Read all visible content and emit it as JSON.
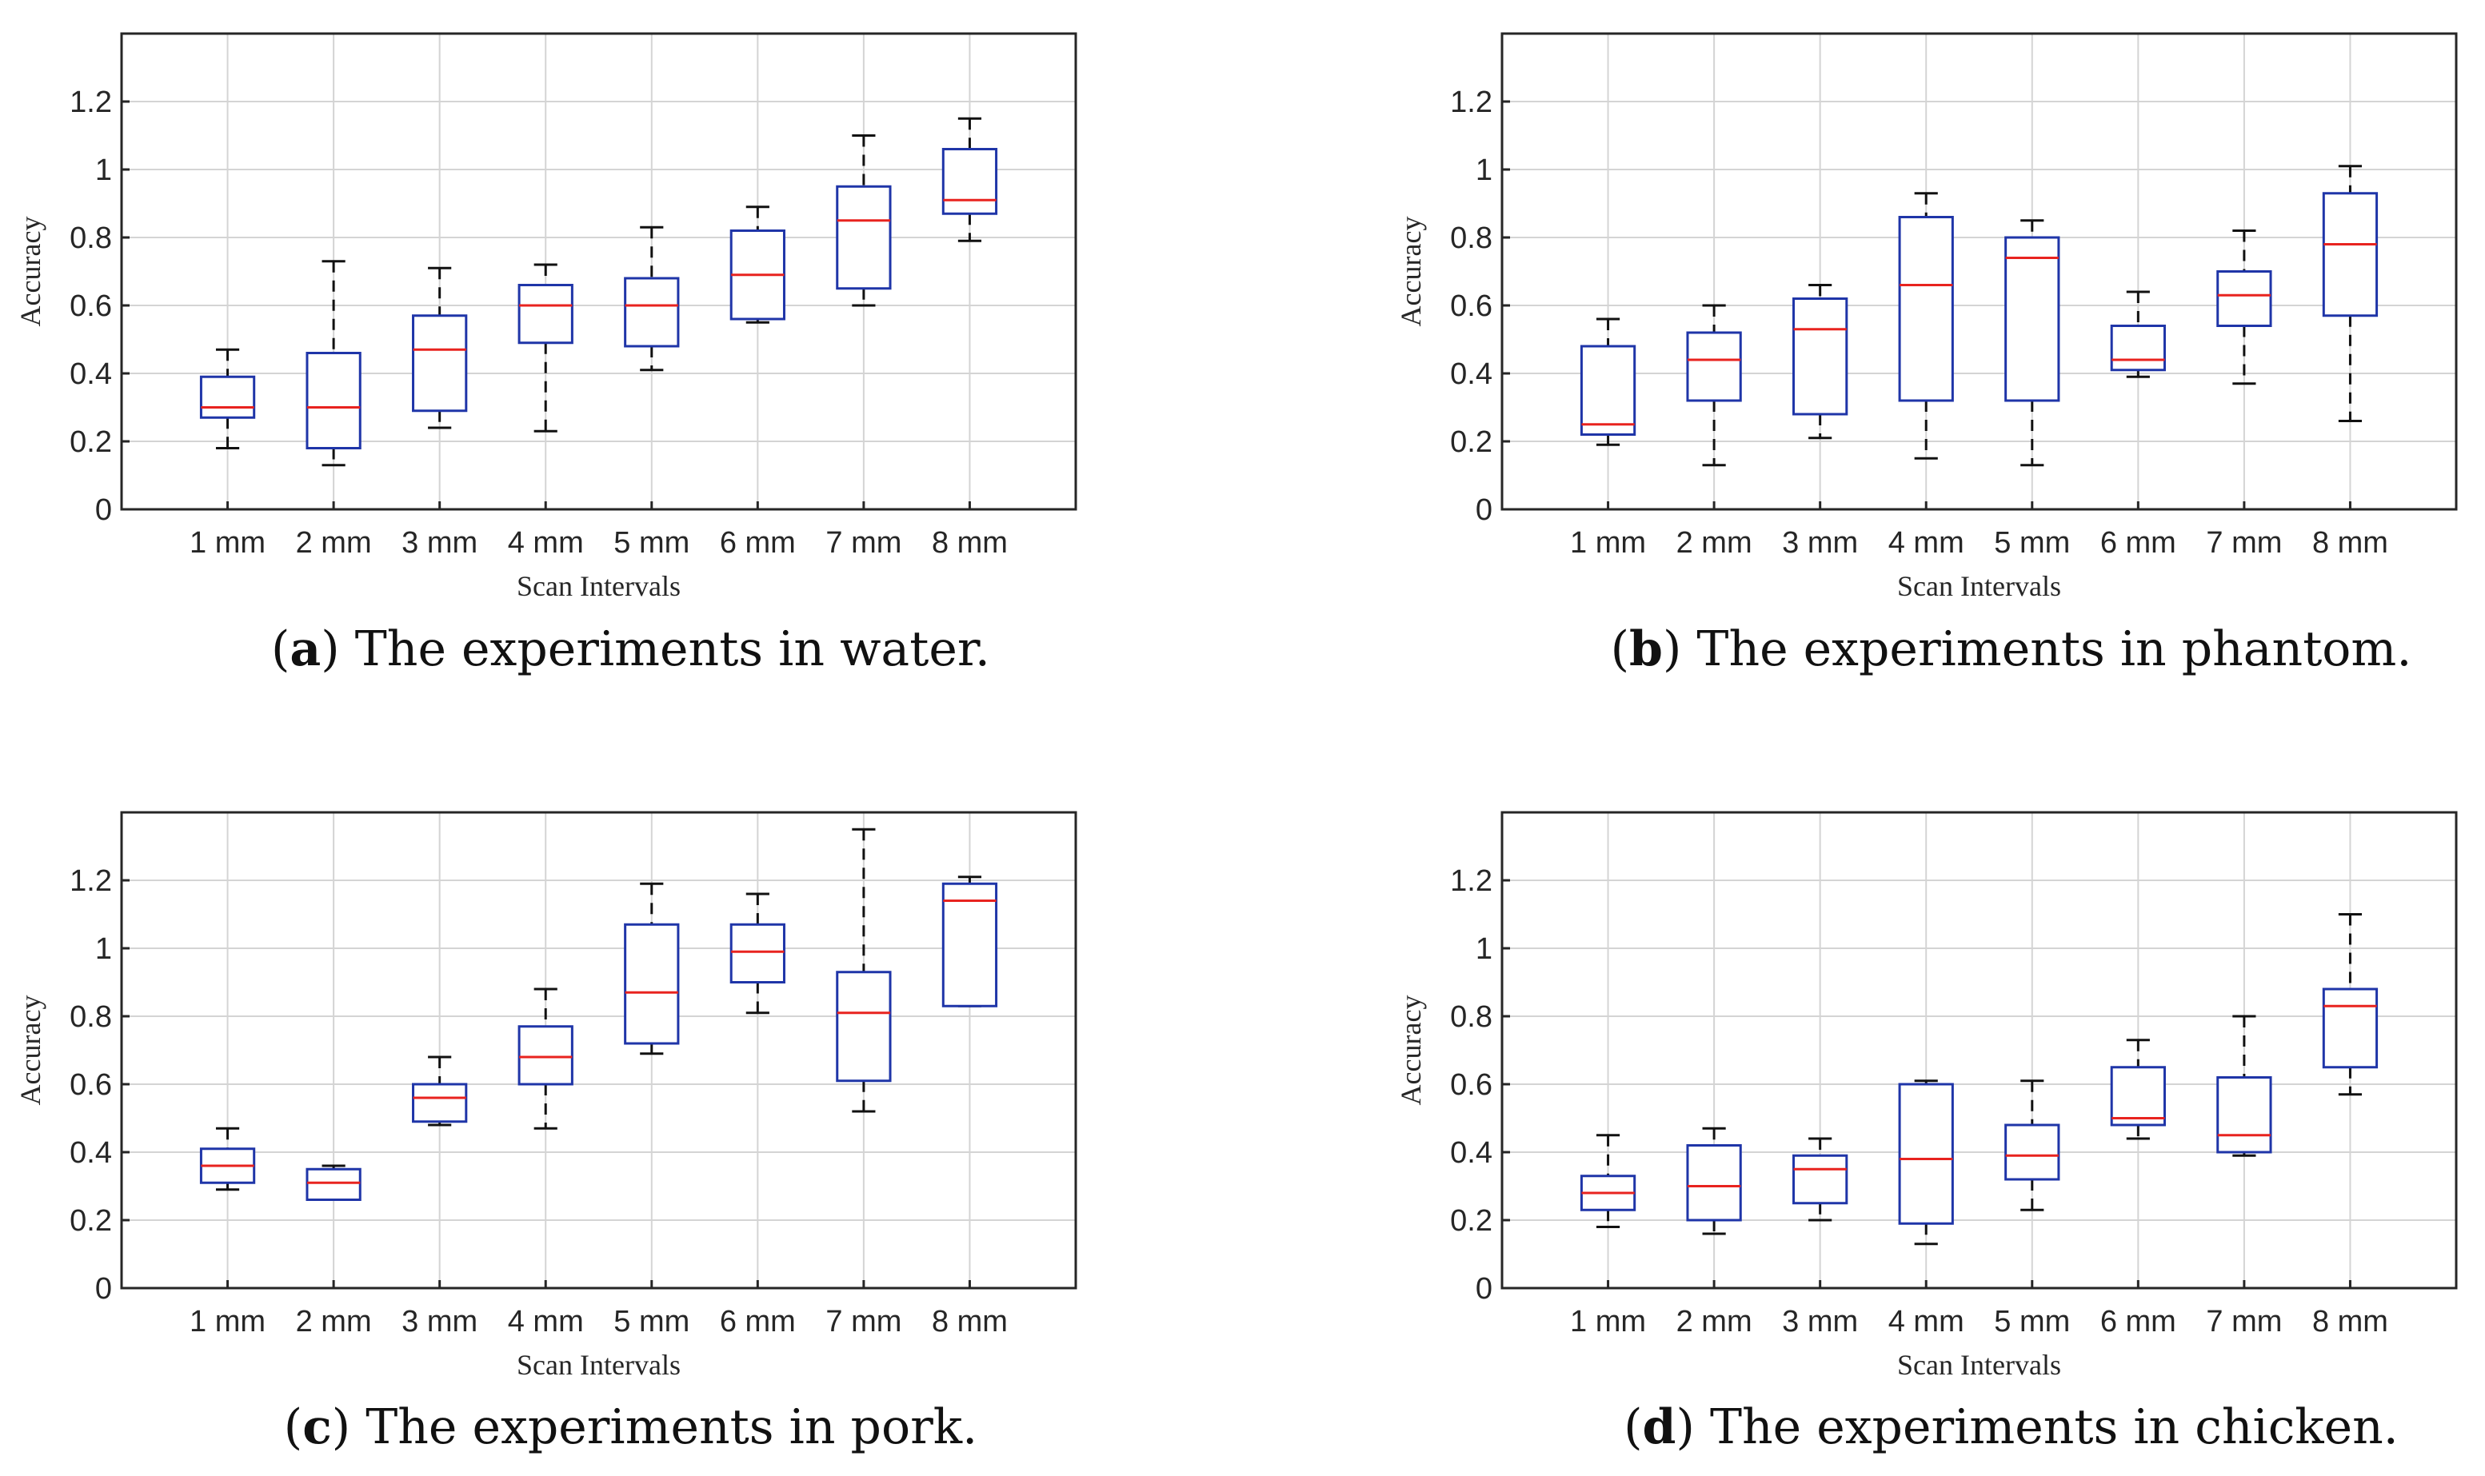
{
  "figure": {
    "colors": {
      "box": "#1f35a8",
      "median": "#e8231f",
      "whisker": "#111111",
      "grid": "#d4d4d4",
      "axis": "#262626"
    }
  },
  "chart_data": [
    {
      "type": "boxplot",
      "panel_letter": "a",
      "caption": "The experiments in water.",
      "xlabel": "Scan Intervals",
      "ylabel": "Accuracy",
      "ylim": [
        0,
        1.4
      ],
      "yticks": [
        0,
        0.2,
        0.4,
        0.6,
        0.8,
        1,
        1.2
      ],
      "ytick_labels": [
        "0",
        "0.2",
        "0.4",
        "0.6",
        "0.8",
        "1",
        "1.2"
      ],
      "grid": true,
      "categories": [
        "1 mm",
        "2 mm",
        "3 mm",
        "4 mm",
        "5 mm",
        "6 mm",
        "7 mm",
        "8 mm"
      ],
      "boxes": [
        {
          "min": 0.18,
          "q1": 0.27,
          "median": 0.3,
          "q3": 0.39,
          "max": 0.47
        },
        {
          "min": 0.13,
          "q1": 0.18,
          "median": 0.3,
          "q3": 0.46,
          "max": 0.73
        },
        {
          "min": 0.24,
          "q1": 0.29,
          "median": 0.47,
          "q3": 0.57,
          "max": 0.71
        },
        {
          "min": 0.23,
          "q1": 0.49,
          "median": 0.6,
          "q3": 0.66,
          "max": 0.72
        },
        {
          "min": 0.41,
          "q1": 0.48,
          "median": 0.6,
          "q3": 0.68,
          "max": 0.83
        },
        {
          "min": 0.55,
          "q1": 0.56,
          "median": 0.69,
          "q3": 0.82,
          "max": 0.89
        },
        {
          "min": 0.6,
          "q1": 0.65,
          "median": 0.85,
          "q3": 0.95,
          "max": 1.1
        },
        {
          "min": 0.79,
          "q1": 0.87,
          "median": 0.91,
          "q3": 1.06,
          "max": 1.15
        }
      ]
    },
    {
      "type": "boxplot",
      "panel_letter": "b",
      "caption": "The experiments in phantom.",
      "xlabel": "Scan Intervals",
      "ylabel": "Accuracy",
      "ylim": [
        0,
        1.4
      ],
      "yticks": [
        0,
        0.2,
        0.4,
        0.6,
        0.8,
        1,
        1.2
      ],
      "ytick_labels": [
        "0",
        "0.2",
        "0.4",
        "0.6",
        "0.8",
        "1",
        "1.2"
      ],
      "grid": true,
      "categories": [
        "1 mm",
        "2 mm",
        "3 mm",
        "4 mm",
        "5 mm",
        "6 mm",
        "7 mm",
        "8 mm"
      ],
      "boxes": [
        {
          "min": 0.19,
          "q1": 0.22,
          "median": 0.25,
          "q3": 0.48,
          "max": 0.56
        },
        {
          "min": 0.13,
          "q1": 0.32,
          "median": 0.44,
          "q3": 0.52,
          "max": 0.6
        },
        {
          "min": 0.21,
          "q1": 0.28,
          "median": 0.53,
          "q3": 0.62,
          "max": 0.66
        },
        {
          "min": 0.15,
          "q1": 0.32,
          "median": 0.66,
          "q3": 0.86,
          "max": 0.93
        },
        {
          "min": 0.13,
          "q1": 0.32,
          "median": 0.74,
          "q3": 0.8,
          "max": 0.85
        },
        {
          "min": 0.39,
          "q1": 0.41,
          "median": 0.44,
          "q3": 0.54,
          "max": 0.64
        },
        {
          "min": 0.37,
          "q1": 0.54,
          "median": 0.63,
          "q3": 0.7,
          "max": 0.82
        },
        {
          "min": 0.26,
          "q1": 0.57,
          "median": 0.78,
          "q3": 0.93,
          "max": 1.01
        }
      ]
    },
    {
      "type": "boxplot",
      "panel_letter": "c",
      "caption": "The experiments in pork.",
      "xlabel": "Scan Intervals",
      "ylabel": "Accuracy",
      "ylim": [
        0,
        1.4
      ],
      "yticks": [
        0,
        0.2,
        0.4,
        0.6,
        0.8,
        1,
        1.2
      ],
      "ytick_labels": [
        "0",
        "0.2",
        "0.4",
        "0.6",
        "0.8",
        "1",
        "1.2"
      ],
      "grid": true,
      "categories": [
        "1 mm",
        "2 mm",
        "3 mm",
        "4 mm",
        "5 mm",
        "6 mm",
        "7 mm",
        "8 mm"
      ],
      "boxes": [
        {
          "min": 0.29,
          "q1": 0.31,
          "median": 0.36,
          "q3": 0.41,
          "max": 0.47
        },
        {
          "min": 0.26,
          "q1": 0.26,
          "median": 0.31,
          "q3": 0.35,
          "max": 0.36
        },
        {
          "min": 0.48,
          "q1": 0.49,
          "median": 0.56,
          "q3": 0.6,
          "max": 0.68
        },
        {
          "min": 0.47,
          "q1": 0.6,
          "median": 0.68,
          "q3": 0.77,
          "max": 0.88
        },
        {
          "min": 0.69,
          "q1": 0.72,
          "median": 0.87,
          "q3": 1.07,
          "max": 1.19
        },
        {
          "min": 0.81,
          "q1": 0.9,
          "median": 0.99,
          "q3": 1.07,
          "max": 1.16
        },
        {
          "min": 0.52,
          "q1": 0.61,
          "median": 0.81,
          "q3": 0.93,
          "max": 1.35
        },
        {
          "min": 0.83,
          "q1": 0.83,
          "median": 1.14,
          "q3": 1.19,
          "max": 1.21
        }
      ]
    },
    {
      "type": "boxplot",
      "panel_letter": "d",
      "caption": "The experiments in chicken.",
      "xlabel": "Scan Intervals",
      "ylabel": "Accuracy",
      "ylim": [
        0,
        1.4
      ],
      "yticks": [
        0,
        0.2,
        0.4,
        0.6,
        0.8,
        1,
        1.2
      ],
      "ytick_labels": [
        "0",
        "0.2",
        "0.4",
        "0.6",
        "0.8",
        "1",
        "1.2"
      ],
      "grid": true,
      "categories": [
        "1 mm",
        "2 mm",
        "3 mm",
        "4 mm",
        "5 mm",
        "6 mm",
        "7 mm",
        "8 mm"
      ],
      "boxes": [
        {
          "min": 0.18,
          "q1": 0.23,
          "median": 0.28,
          "q3": 0.33,
          "max": 0.45
        },
        {
          "min": 0.16,
          "q1": 0.2,
          "median": 0.3,
          "q3": 0.42,
          "max": 0.47
        },
        {
          "min": 0.2,
          "q1": 0.25,
          "median": 0.35,
          "q3": 0.39,
          "max": 0.44
        },
        {
          "min": 0.13,
          "q1": 0.19,
          "median": 0.38,
          "q3": 0.6,
          "max": 0.61
        },
        {
          "min": 0.23,
          "q1": 0.32,
          "median": 0.39,
          "q3": 0.48,
          "max": 0.61
        },
        {
          "min": 0.44,
          "q1": 0.48,
          "median": 0.5,
          "q3": 0.65,
          "max": 0.73
        },
        {
          "min": 0.39,
          "q1": 0.4,
          "median": 0.45,
          "q3": 0.62,
          "max": 0.8
        },
        {
          "min": 0.57,
          "q1": 0.65,
          "median": 0.83,
          "q3": 0.88,
          "max": 1.1
        }
      ]
    }
  ]
}
